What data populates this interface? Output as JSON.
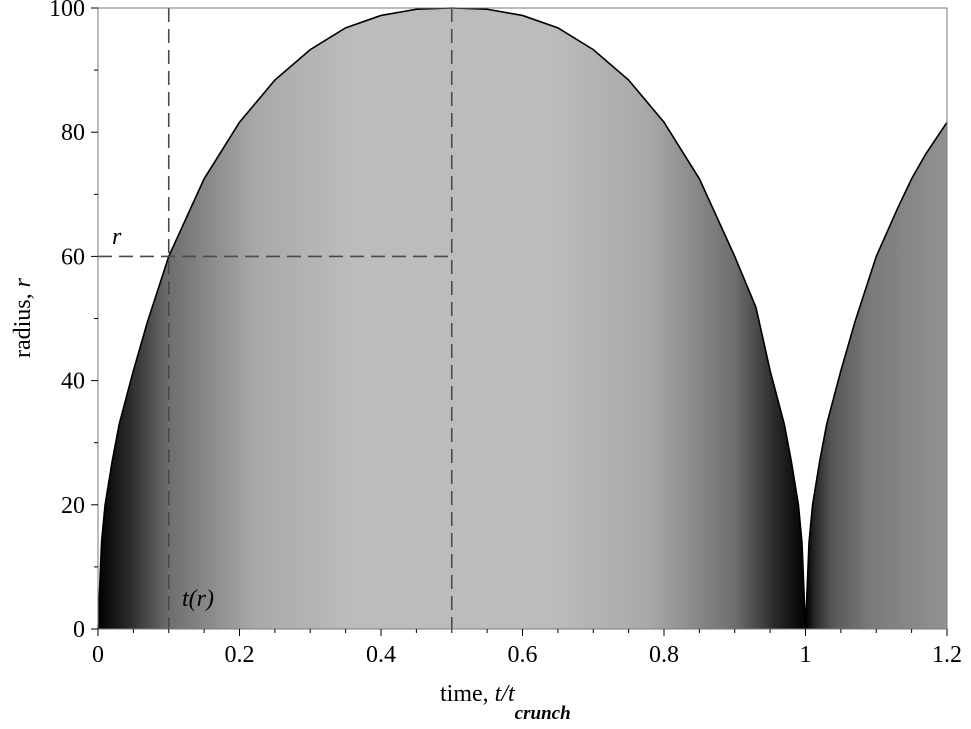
{
  "chart_data": {
    "type": "area",
    "title": "",
    "xlabel": {
      "prefix": "time, ",
      "var": "t/t",
      "sub": "crunch"
    },
    "ylabel": {
      "prefix": "radius, ",
      "var": "r"
    },
    "xlim": [
      0,
      1.2
    ],
    "ylim": [
      0,
      100
    ],
    "xticks": [
      0,
      0.2,
      0.4,
      0.6,
      0.8,
      1,
      1.2
    ],
    "xtick_labels": [
      "0",
      "0.2",
      "0.4",
      "0.6",
      "0.8",
      "1",
      "1.2"
    ],
    "yticks": [
      0,
      20,
      40,
      60,
      80,
      100
    ],
    "ytick_labels": [
      "0",
      "20",
      "40",
      "60",
      "80",
      "100"
    ],
    "grid": false,
    "legend": "none",
    "fill_gradient": "dark at r=0, light near maximum radius",
    "series": [
      {
        "x": [
          0,
          0.005,
          0.01,
          0.02,
          0.03,
          0.05,
          0.07,
          0.1,
          0.15,
          0.2,
          0.25,
          0.3,
          0.35,
          0.4,
          0.45,
          0.5,
          0.55,
          0.6,
          0.65,
          0.7,
          0.75,
          0.8,
          0.85,
          0.9,
          0.93,
          0.95,
          0.97,
          0.98,
          0.99,
          0.995,
          1.0
        ],
        "y": [
          0,
          14,
          20,
          27,
          33,
          41.6,
          49.5,
          60,
          72.5,
          81.6,
          88.4,
          93.3,
          96.8,
          98.8,
          99.8,
          100,
          99.8,
          98.8,
          96.8,
          93.3,
          88.4,
          81.6,
          72.5,
          60,
          51.8,
          41.6,
          33,
          27,
          20,
          14,
          0
        ]
      },
      {
        "x": [
          1.0,
          1.005,
          1.01,
          1.02,
          1.03,
          1.05,
          1.07,
          1.1,
          1.13,
          1.15,
          1.17,
          1.2
        ],
        "y": [
          0,
          14,
          20,
          27,
          33,
          41.6,
          49.5,
          60,
          67.7,
          72.5,
          76.5,
          81.6
        ]
      }
    ],
    "reference_point": {
      "x": 0.1,
      "y": 60,
      "peak_x": 0.5
    },
    "annotations": {
      "r_label": "r",
      "t_label": "t(r)"
    }
  }
}
